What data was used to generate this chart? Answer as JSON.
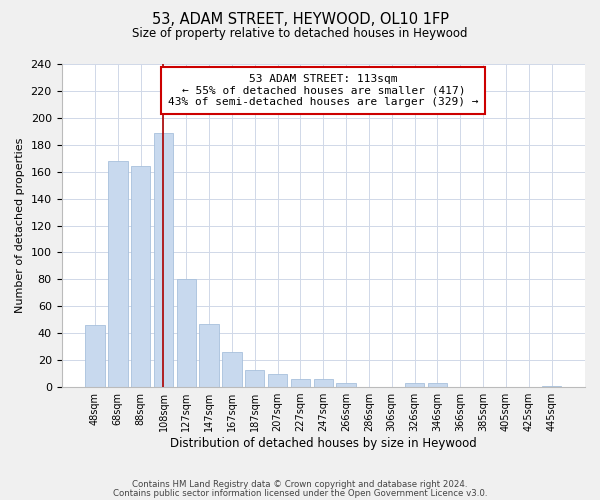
{
  "title": "53, ADAM STREET, HEYWOOD, OL10 1FP",
  "subtitle": "Size of property relative to detached houses in Heywood",
  "xlabel": "Distribution of detached houses by size in Heywood",
  "ylabel": "Number of detached properties",
  "bar_labels": [
    "48sqm",
    "68sqm",
    "88sqm",
    "108sqm",
    "127sqm",
    "147sqm",
    "167sqm",
    "187sqm",
    "207sqm",
    "227sqm",
    "247sqm",
    "266sqm",
    "286sqm",
    "306sqm",
    "326sqm",
    "346sqm",
    "366sqm",
    "385sqm",
    "405sqm",
    "425sqm",
    "445sqm"
  ],
  "bar_values": [
    46,
    168,
    164,
    189,
    80,
    47,
    26,
    13,
    10,
    6,
    6,
    3,
    0,
    0,
    3,
    3,
    0,
    0,
    0,
    0,
    1
  ],
  "bar_color": "#c8d9ee",
  "bar_edge_color": "#a8c0dc",
  "vline_color": "#aa0000",
  "annotation_title": "53 ADAM STREET: 113sqm",
  "annotation_line1": "← 55% of detached houses are smaller (417)",
  "annotation_line2": "43% of semi-detached houses are larger (329) →",
  "annotation_box_color": "#ffffff",
  "annotation_box_edge": "#cc0000",
  "ylim": [
    0,
    240
  ],
  "yticks": [
    0,
    20,
    40,
    60,
    80,
    100,
    120,
    140,
    160,
    180,
    200,
    220,
    240
  ],
  "footer1": "Contains HM Land Registry data © Crown copyright and database right 2024.",
  "footer2": "Contains public sector information licensed under the Open Government Licence v3.0.",
  "bg_color": "#f0f0f0",
  "plot_bg_color": "#ffffff",
  "grid_color": "#d0d8e8"
}
